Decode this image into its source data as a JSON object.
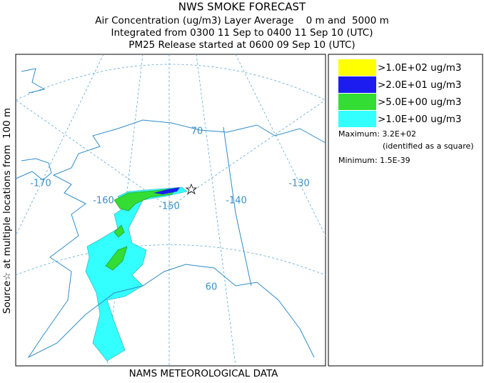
{
  "title": [
    "NWS SMOKE FORECAST",
    "Air Concentration (ug/m3) Layer Average    0 m and  5000 m",
    "Integrated from 0300 11 Sep to 0400 11 Sep 10 (UTC)",
    "PM25 Release started at 0600 09 Sep 10 (UTC)"
  ],
  "side_label": "Source☆ at multiple locations from  100 m",
  "footer": "NAMS METEOROLOGICAL DATA",
  "map_labels": {
    "longitudes": [
      "-170",
      "-160",
      "-150",
      "-140",
      "-130"
    ],
    "latitudes": [
      "70",
      "60"
    ]
  },
  "legend": {
    "entries": [
      {
        "label": ">1.0E+02 ug/m3",
        "color": "#ffff00"
      },
      {
        "label": ">2.0E+01 ug/m3",
        "color": "#1c1cf0"
      },
      {
        "label": ">5.0E+00 ug/m3",
        "color": "#33dd33"
      },
      {
        "label": ">1.0E+00 ug/m3",
        "color": "#33ffff"
      }
    ],
    "maximum": "Maximum: 3.2E+02",
    "maximum_note": "(identified as a square)",
    "minimum": "Minimum: 1.5E-39"
  }
}
